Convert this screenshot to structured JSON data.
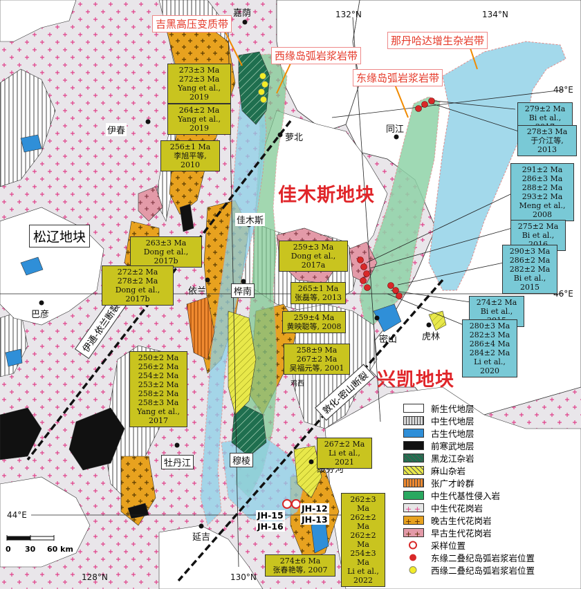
{
  "belt_labels": {
    "jihei": "吉黑高压变质带",
    "west_arc": "西缘岛弧岩浆岩带",
    "nadanhada": "那丹哈达增生杂岩带",
    "east_arc": "东缘岛弧岩浆岩带"
  },
  "blocks": {
    "jiamusi": "佳木斯地块",
    "xingkai": "兴凯地块",
    "songliao": "松辽地块"
  },
  "faults": {
    "yiyi": "伊通-依兰断裂",
    "dunmi": "敦化-密山断裂"
  },
  "cities": {
    "jiayin": "嘉荫",
    "yichun": "伊春",
    "luobei": "萝北",
    "tongjiang": "同江",
    "jiamusi": "佳木斯",
    "yilan": "依兰",
    "huanan": "桦南",
    "bayan": "巴彦",
    "mishan": "密山",
    "hulin": "虎林",
    "jixi": "鸡西",
    "muling": "穆棱",
    "mudanjiang": "牡丹江",
    "suifenhe": "绥芬河",
    "yanji": "延吉"
  },
  "coords": {
    "lon132": "132°N",
    "lon134": "134°N",
    "lon128": "128°N",
    "lon130": "130°N",
    "lat48": "48°E",
    "lat46": "46°E",
    "lat44": "44°E"
  },
  "age_boxes": [
    {
      "id": "a1",
      "lines": [
        "273±3 Ma",
        "272±3 Ma",
        "Yang et al., 2019"
      ]
    },
    {
      "id": "a2",
      "lines": [
        "264±2 Ma",
        "Yang et al., 2019"
      ]
    },
    {
      "id": "a3",
      "lines": [
        "256±1 Ma",
        "李旭平等, 2010"
      ]
    },
    {
      "id": "a4",
      "lines": [
        "263±3 Ma",
        "Dong et al., 2017b"
      ]
    },
    {
      "id": "a5",
      "lines": [
        "272±2 Ma",
        "278±2 Ma",
        "Dong et al., 2017b"
      ]
    },
    {
      "id": "a6",
      "lines": [
        "259±3 Ma",
        "Dong et al., 2017a"
      ]
    },
    {
      "id": "a7",
      "lines": [
        "265±1 Ma",
        "张磊等, 2013"
      ]
    },
    {
      "id": "a8",
      "lines": [
        "259±4 Ma",
        "黄映聪等, 2008"
      ]
    },
    {
      "id": "a9",
      "lines": [
        "258±9 Ma",
        "267±2 Ma",
        "吴福元等, 2001"
      ]
    },
    {
      "id": "a10",
      "lines": [
        "250±2 Ma",
        "256±2 Ma",
        "254±2 Ma",
        "253±2 Ma",
        "258±2 Ma",
        "258±3 Ma",
        "Yang et al., 2017"
      ]
    },
    {
      "id": "a11",
      "lines": [
        "267±2 Ma",
        "Li et al., 2021"
      ]
    },
    {
      "id": "a12",
      "lines": [
        "262±3 Ma",
        "262±2 Ma",
        "262±2 Ma",
        "254±3 Ma",
        "Li et al., 2022"
      ]
    },
    {
      "id": "a13",
      "lines": [
        "274±6 Ma",
        "张春艳等, 2007"
      ]
    },
    {
      "id": "b1",
      "lines": [
        "279±2 Ma",
        "Bi et al., 2017"
      ]
    },
    {
      "id": "b2",
      "lines": [
        "278±3 Ma",
        "于介江等, 2013"
      ]
    },
    {
      "id": "b3",
      "lines": [
        "291±2 Ma",
        "286±3 Ma",
        "288±2 Ma",
        "293±2 Ma",
        "Meng et al., 2008"
      ]
    },
    {
      "id": "b4",
      "lines": [
        "275±2 Ma",
        "Bi et al., 2016"
      ]
    },
    {
      "id": "b5",
      "lines": [
        "290±3 Ma",
        "286±2 Ma",
        "282±2 Ma",
        "Bi et al., 2015"
      ]
    },
    {
      "id": "b6",
      "lines": [
        "274±2 Ma",
        "Bi et al., 2015"
      ]
    },
    {
      "id": "b7",
      "lines": [
        "280±3 Ma",
        "282±3 Ma",
        "286±4 Ma",
        "284±2 Ma",
        "Li et al., 2020"
      ]
    }
  ],
  "samples": {
    "jh12": "JH-12",
    "jh13": "JH-13",
    "jh15": "JH-15",
    "jh16": "JH-16"
  },
  "scale": {
    "t0": "0",
    "t1": "30",
    "t2": "60 km"
  },
  "legend": [
    {
      "label": "新生代地层",
      "color": "#ffffff",
      "pattern": "none"
    },
    {
      "label": "中生代地层",
      "color": "#d8d8d8",
      "pattern": "vlines"
    },
    {
      "label": "古生代地层",
      "color": "#2f8fd8",
      "pattern": "none"
    },
    {
      "label": "前寒武地层",
      "color": "#111111",
      "pattern": "none"
    },
    {
      "label": "黑龙江杂岩",
      "color": "#1f6f4f",
      "pattern": "diag"
    },
    {
      "label": "麻山杂岩",
      "color": "#e8e84a",
      "pattern": "diag"
    },
    {
      "label": "张广才岭群",
      "color": "#f08a30",
      "pattern": "vlines"
    },
    {
      "label": "中生代基性侵入岩",
      "color": "#2aa860",
      "pattern": "none"
    },
    {
      "label": "中生代花岗岩",
      "color": "#e6e6e6",
      "pattern": "pluspink"
    },
    {
      "label": "晚古生代花岗岩",
      "color": "#e8a21f",
      "pattern": "plusdark"
    },
    {
      "label": "早古生代花岗岩",
      "color": "#e39aa8",
      "pattern": "plusdark"
    },
    {
      "label": "采样位置",
      "color": "#ffffff",
      "pattern": "star"
    },
    {
      "label": "东缘二叠纪岛弧岩浆岩位置",
      "color": "#ffffff",
      "pattern": "reddot"
    },
    {
      "label": "西缘二叠纪岛弧岩浆岩位置",
      "color": "#ffffff",
      "pattern": "yellowdot"
    }
  ]
}
